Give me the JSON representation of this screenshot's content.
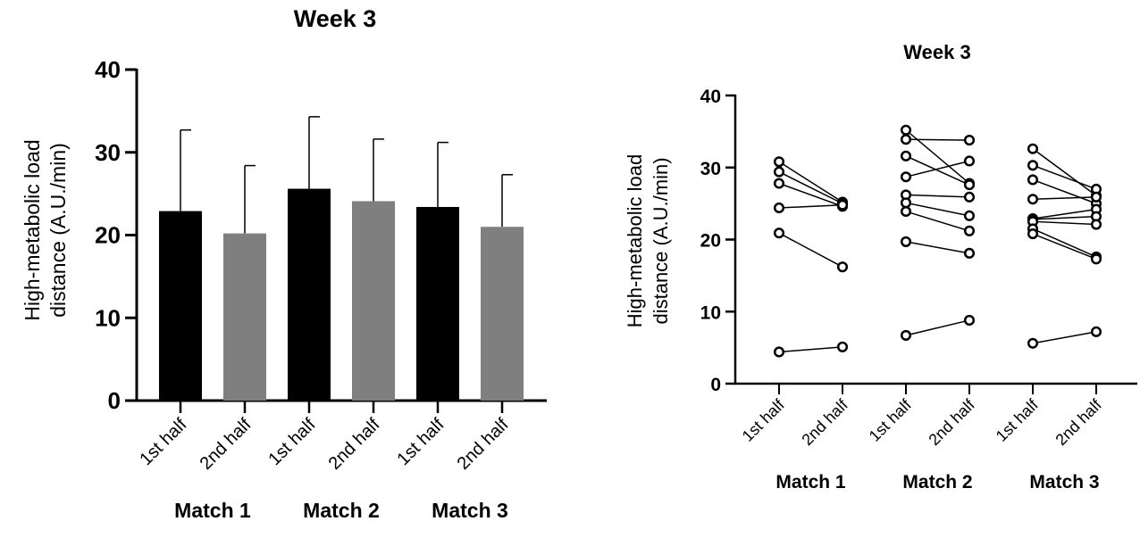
{
  "chart_data": [
    {
      "type": "bar",
      "title": "Week 3",
      "ylabel": [
        "High-metabolic load",
        "distance (A.U./min)"
      ],
      "ylim": [
        0,
        40
      ],
      "yticks": [
        0,
        10,
        20,
        30,
        40
      ],
      "categories": [
        "1st half",
        "2nd half",
        "1st half",
        "2nd half",
        "1st half",
        "2nd half"
      ],
      "groups": [
        "Match 1",
        "Match 2",
        "Match 3"
      ],
      "values": [
        22.9,
        20.2,
        25.6,
        24.1,
        23.4,
        21.0
      ],
      "error_upper": [
        32.7,
        28.4,
        34.3,
        31.6,
        31.2,
        27.3
      ],
      "bar_colors": [
        "#000000",
        "#7f7f7f",
        "#000000",
        "#7f7f7f",
        "#000000",
        "#7f7f7f"
      ],
      "grid": false,
      "legend": "none"
    },
    {
      "type": "scatter",
      "subtype": "paired-lines",
      "title": "Week 3",
      "ylabel": [
        "High-metabolic load",
        "distance (A.U./min)"
      ],
      "ylim": [
        0,
        40
      ],
      "yticks": [
        0,
        10,
        20,
        30,
        40
      ],
      "categories": [
        "1st half",
        "2nd half",
        "1st half",
        "2nd half",
        "1st half",
        "2nd half"
      ],
      "groups": [
        "Match 1",
        "Match 2",
        "Match 3"
      ],
      "pairs": [
        {
          "match": "Match 1",
          "values": [
            [
              30.8,
              25.2
            ],
            [
              29.4,
              25.0
            ],
            [
              27.8,
              24.6
            ],
            [
              24.4,
              24.8
            ],
            [
              20.9,
              16.2
            ],
            [
              4.4,
              5.1
            ]
          ]
        },
        {
          "match": "Match 2",
          "values": [
            [
              35.2,
              27.8
            ],
            [
              33.9,
              33.8
            ],
            [
              31.6,
              27.6
            ],
            [
              28.7,
              30.9
            ],
            [
              26.2,
              25.9
            ],
            [
              25.1,
              23.3
            ],
            [
              23.9,
              21.2
            ],
            [
              19.7,
              18.1
            ],
            [
              6.7,
              8.8
            ]
          ]
        },
        {
          "match": "Match 3",
          "values": [
            [
              32.6,
              26.1
            ],
            [
              30.3,
              27.0
            ],
            [
              28.3,
              25.0
            ],
            [
              25.6,
              25.9
            ],
            [
              22.9,
              24.2
            ],
            [
              22.8,
              23.2
            ],
            [
              22.5,
              22.1
            ],
            [
              21.5,
              17.6
            ],
            [
              20.8,
              17.3
            ],
            [
              5.6,
              7.2
            ]
          ]
        }
      ],
      "grid": false,
      "legend": "none"
    }
  ]
}
